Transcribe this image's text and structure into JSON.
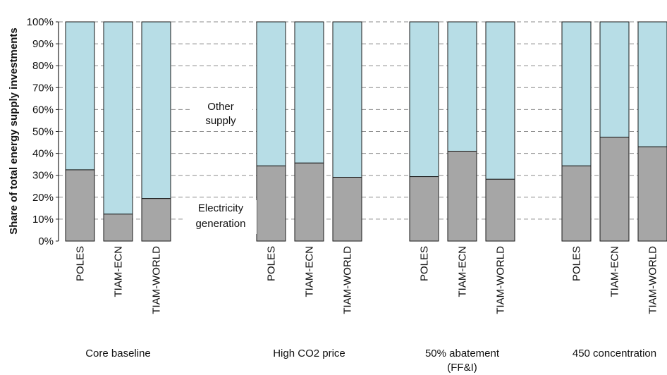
{
  "chart_data": {
    "type": "bar",
    "stacked": true,
    "ylabel": "Share of total energy supply investments",
    "ylim": [
      0,
      100
    ],
    "yticks": [
      "0%",
      "10%",
      "20%",
      "30%",
      "40%",
      "50%",
      "60%",
      "70%",
      "80%",
      "90%",
      "100%"
    ],
    "grid": true,
    "groups": [
      {
        "label": "Core baseline",
        "bars": [
          {
            "model": "POLES",
            "electricity": 32.5
          },
          {
            "model": "TIAM-ECN",
            "electricity": 12.3
          },
          {
            "model": "TIAM-WORLD",
            "electricity": 19.4
          }
        ]
      },
      {
        "label": "High CO2 price",
        "bars": [
          {
            "model": "POLES",
            "electricity": 34.3
          },
          {
            "model": "TIAM-ECN",
            "electricity": 35.6
          },
          {
            "model": "TIAM-WORLD",
            "electricity": 29.1
          }
        ]
      },
      {
        "label": "50% abatement\n(FF&I)",
        "bars": [
          {
            "model": "POLES",
            "electricity": 29.4
          },
          {
            "model": "TIAM-ECN",
            "electricity": 41.0
          },
          {
            "model": "TIAM-WORLD",
            "electricity": 28.2
          }
        ]
      },
      {
        "label": "450 concentration",
        "bars": [
          {
            "model": "POLES",
            "electricity": 34.3
          },
          {
            "model": "TIAM-ECN",
            "electricity": 47.4
          },
          {
            "model": "TIAM-WORLD",
            "electricity": 43.0
          }
        ]
      }
    ],
    "series": [
      {
        "name": "Electricity\ngeneration",
        "color": "#a6a6a6"
      },
      {
        "name": "Other\nsupply",
        "color": "#b7dde6"
      }
    ]
  }
}
